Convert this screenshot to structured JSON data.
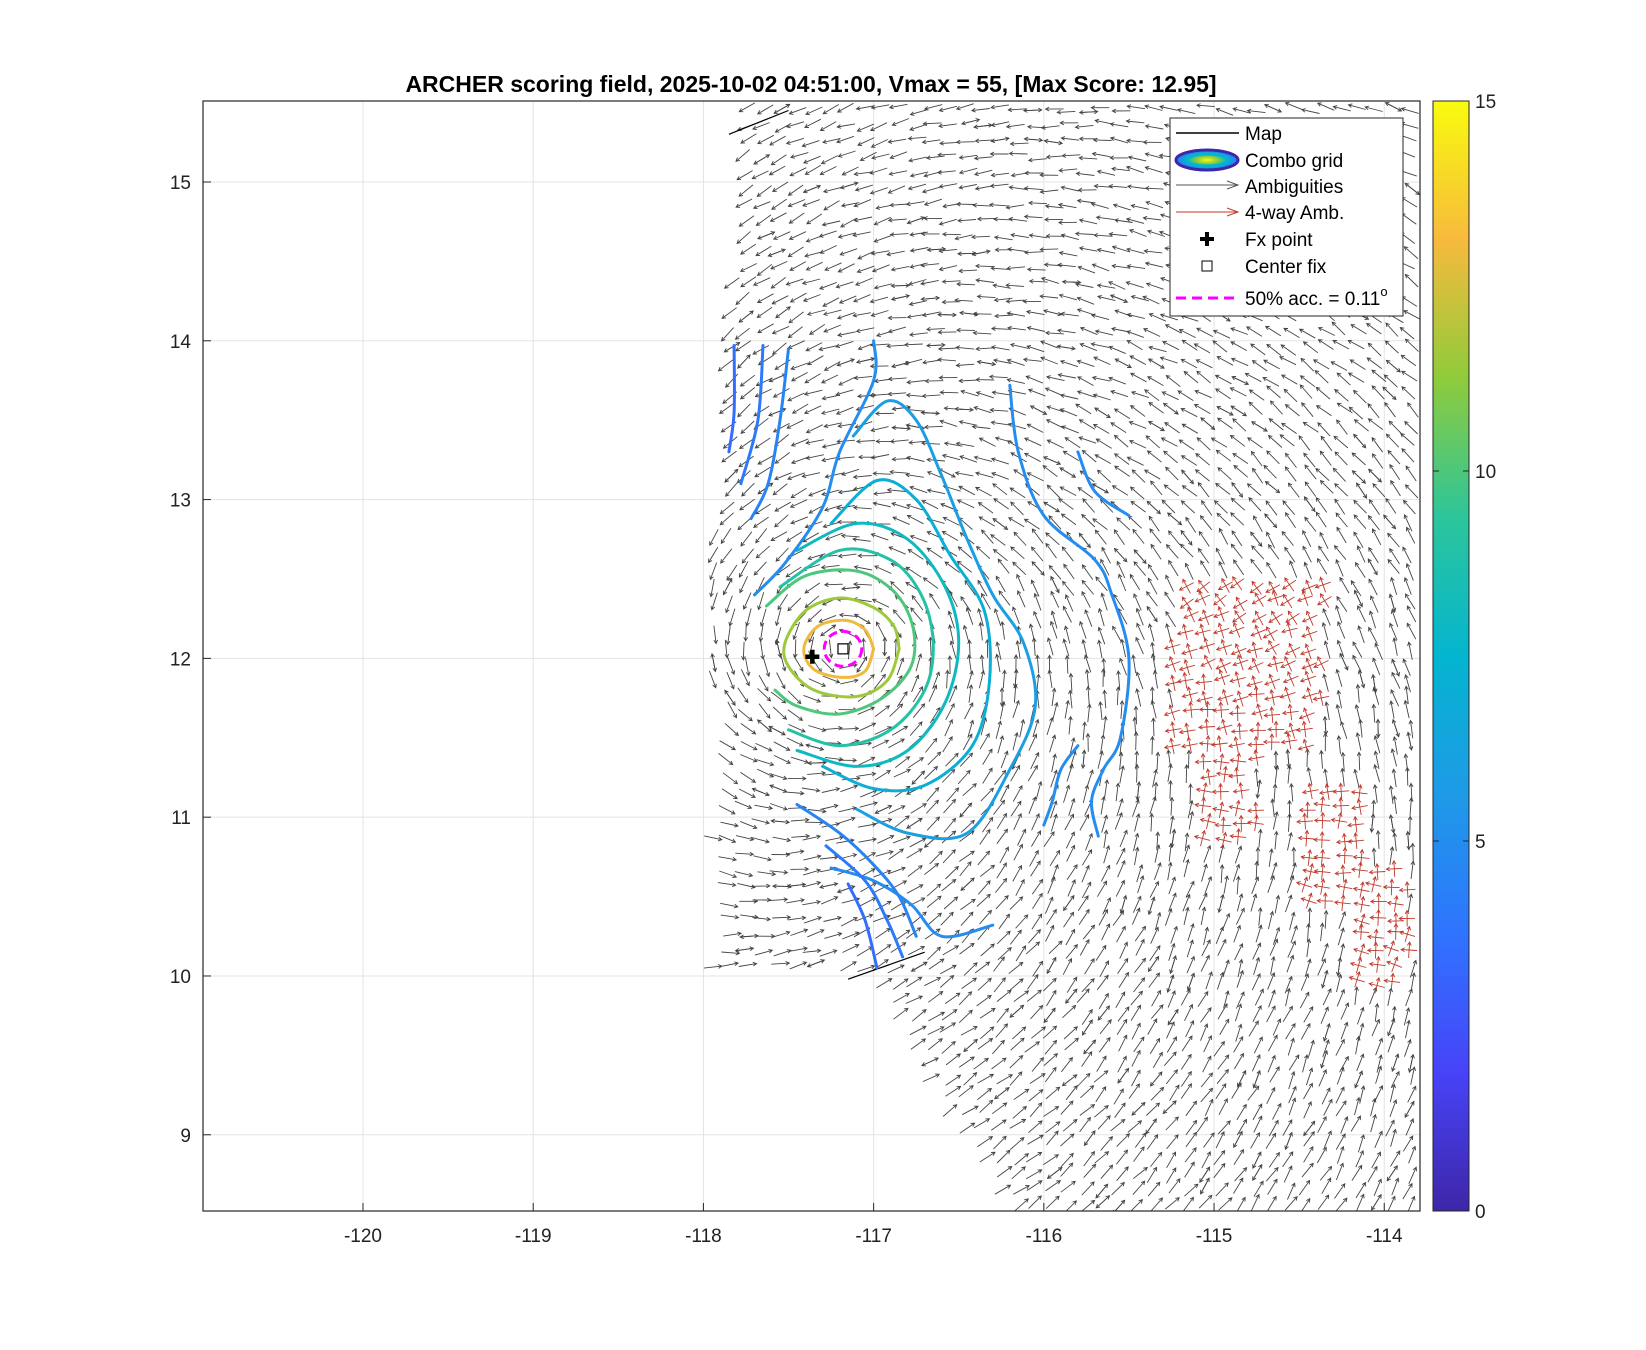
{
  "chart_data": {
    "type": "contour",
    "title": "ARCHER scoring field, 2025-10-02 04:51:00, Vmax = 55, [Max Score: 12.95]",
    "xlabel": "",
    "ylabel": "",
    "xlim": [
      -120.94,
      -113.79
    ],
    "ylim": [
      8.52,
      15.51
    ],
    "xticks": [
      "-120",
      "-119",
      "-118",
      "-117",
      "-116",
      "-115",
      "-114"
    ],
    "yticks": [
      "9",
      "10",
      "11",
      "12",
      "13",
      "14",
      "15"
    ],
    "grid": true,
    "legend_position": "top-right",
    "legend": [
      {
        "label": "Map",
        "kind": "line"
      },
      {
        "label": "Combo grid",
        "kind": "contour"
      },
      {
        "label": "Ambiguities",
        "kind": "arrow"
      },
      {
        "label": "4-way Amb.",
        "kind": "red-arrow"
      },
      {
        "label": "Fx point",
        "kind": "plus"
      },
      {
        "label": "Center fix",
        "kind": "square"
      },
      {
        "label": "50% acc. = 0.11",
        "superscript": "o",
        "kind": "dashed"
      }
    ],
    "colorbar": {
      "min": 0,
      "max": 15,
      "ticks": [
        "0",
        "5",
        "10",
        "15"
      ],
      "colormap": "parula"
    },
    "fx_point": {
      "lon": -117.36,
      "lat": 12.01
    },
    "center_fix": {
      "lon": -117.18,
      "lat": 12.06
    },
    "accuracy_circle": {
      "lon": -117.18,
      "lat": 12.06,
      "radius_deg": 0.11
    },
    "contours": [
      {
        "level": 13,
        "points": [
          [
            -117.0,
            12.06
          ],
          [
            -117.05,
            11.92
          ],
          [
            -117.18,
            11.88
          ],
          [
            -117.35,
            11.93
          ],
          [
            -117.41,
            12.06
          ],
          [
            -117.33,
            12.2
          ],
          [
            -117.17,
            12.24
          ],
          [
            -117.05,
            12.18
          ],
          [
            -117.0,
            12.06
          ]
        ]
      },
      {
        "level": 11.5,
        "points": [
          [
            -116.85,
            12.06
          ],
          [
            -116.92,
            11.86
          ],
          [
            -117.1,
            11.76
          ],
          [
            -117.35,
            11.8
          ],
          [
            -117.5,
            11.95
          ],
          [
            -117.52,
            12.1
          ],
          [
            -117.4,
            12.3
          ],
          [
            -117.2,
            12.38
          ],
          [
            -117.0,
            12.32
          ],
          [
            -116.88,
            12.2
          ],
          [
            -116.85,
            12.06
          ]
        ]
      },
      {
        "level": 10,
        "points": [
          [
            -117.63,
            12.33
          ],
          [
            -117.4,
            12.52
          ],
          [
            -117.1,
            12.55
          ],
          [
            -116.88,
            12.42
          ],
          [
            -116.77,
            12.2
          ],
          [
            -116.78,
            11.95
          ],
          [
            -116.95,
            11.75
          ],
          [
            -117.2,
            11.65
          ],
          [
            -117.45,
            11.7
          ],
          [
            -117.58,
            11.8
          ]
        ]
      },
      {
        "level": 9,
        "points": [
          [
            -117.55,
            12.45
          ],
          [
            -117.2,
            12.68
          ],
          [
            -116.9,
            12.62
          ],
          [
            -116.72,
            12.4
          ],
          [
            -116.65,
            12.1
          ],
          [
            -116.7,
            11.8
          ],
          [
            -116.9,
            11.55
          ],
          [
            -117.2,
            11.45
          ],
          [
            -117.5,
            11.55
          ]
        ]
      },
      {
        "level": 8,
        "points": [
          [
            -117.45,
            12.68
          ],
          [
            -117.1,
            12.85
          ],
          [
            -116.8,
            12.75
          ],
          [
            -116.58,
            12.45
          ],
          [
            -116.5,
            12.1
          ],
          [
            -116.58,
            11.72
          ],
          [
            -116.8,
            11.42
          ],
          [
            -117.1,
            11.32
          ],
          [
            -117.45,
            11.42
          ]
        ]
      },
      {
        "level": 7,
        "points": [
          [
            -117.25,
            12.85
          ],
          [
            -116.98,
            13.12
          ],
          [
            -116.75,
            13.0
          ],
          [
            -116.55,
            12.65
          ],
          [
            -116.35,
            12.3
          ],
          [
            -116.32,
            11.85
          ],
          [
            -116.42,
            11.45
          ],
          [
            -116.7,
            11.2
          ],
          [
            -117.0,
            11.18
          ],
          [
            -117.3,
            11.32
          ]
        ]
      },
      {
        "level": 6,
        "points": [
          [
            -117.12,
            13.4
          ],
          [
            -116.92,
            13.62
          ],
          [
            -116.75,
            13.5
          ],
          [
            -116.6,
            13.15
          ],
          [
            -116.45,
            12.75
          ],
          [
            -116.3,
            12.4
          ],
          [
            -116.12,
            12.1
          ],
          [
            -116.05,
            11.7
          ],
          [
            -116.2,
            11.3
          ],
          [
            -116.45,
            10.9
          ],
          [
            -116.8,
            10.9
          ],
          [
            -117.1,
            11.05
          ]
        ]
      },
      {
        "level": 5,
        "points": [
          [
            -117.0,
            14.0
          ],
          [
            -117.0,
            13.75
          ],
          [
            -117.2,
            13.3
          ],
          [
            -117.3,
            12.95
          ],
          [
            -117.52,
            12.6
          ],
          [
            -117.7,
            12.4
          ]
        ]
      },
      {
        "level": 5,
        "points": [
          [
            -116.2,
            13.72
          ],
          [
            -116.15,
            13.3
          ],
          [
            -116.0,
            12.9
          ],
          [
            -115.7,
            12.62
          ],
          [
            -115.6,
            12.4
          ],
          [
            -115.5,
            12.0
          ],
          [
            -115.55,
            11.5
          ],
          [
            -115.65,
            11.3
          ],
          [
            -115.72,
            11.1
          ],
          [
            -115.68,
            10.88
          ]
        ]
      },
      {
        "level": 5,
        "points": [
          [
            -115.8,
            11.45
          ],
          [
            -115.9,
            11.3
          ],
          [
            -115.95,
            11.1
          ],
          [
            -116.0,
            10.95
          ]
        ]
      },
      {
        "level": 5,
        "points": [
          [
            -115.8,
            13.3
          ],
          [
            -115.7,
            13.05
          ],
          [
            -115.5,
            12.9
          ]
        ]
      },
      {
        "level": 5,
        "points": [
          [
            -117.25,
            10.68
          ],
          [
            -117.0,
            10.6
          ],
          [
            -116.78,
            10.45
          ],
          [
            -116.6,
            10.25
          ],
          [
            -116.3,
            10.32
          ]
        ]
      },
      {
        "level": 4.5,
        "points": [
          [
            -117.5,
            13.95
          ],
          [
            -117.55,
            13.5
          ],
          [
            -117.62,
            13.1
          ],
          [
            -117.72,
            12.88
          ]
        ]
      },
      {
        "level": 4.5,
        "points": [
          [
            -117.45,
            11.08
          ],
          [
            -117.2,
            10.9
          ],
          [
            -117.0,
            10.7
          ],
          [
            -116.85,
            10.5
          ],
          [
            -116.75,
            10.25
          ]
        ]
      },
      {
        "level": 4,
        "points": [
          [
            -117.65,
            13.97
          ],
          [
            -117.68,
            13.5
          ],
          [
            -117.78,
            13.1
          ]
        ]
      },
      {
        "level": 4,
        "points": [
          [
            -117.28,
            10.82
          ],
          [
            -117.05,
            10.6
          ],
          [
            -116.92,
            10.35
          ],
          [
            -116.83,
            10.12
          ]
        ]
      },
      {
        "level": 3.5,
        "points": [
          [
            -117.82,
            13.97
          ],
          [
            -117.82,
            13.55
          ],
          [
            -117.85,
            13.3
          ]
        ]
      },
      {
        "level": 3.5,
        "points": [
          [
            -117.15,
            10.58
          ],
          [
            -117.05,
            10.35
          ],
          [
            -116.98,
            10.05
          ]
        ]
      }
    ],
    "map_lines": [
      [
        [
          -117.85,
          15.3
        ],
        [
          -117.5,
          15.45
        ]
      ],
      [
        [
          -117.15,
          9.98
        ],
        [
          -116.7,
          10.15
        ]
      ]
    ],
    "wind_field": {
      "vortex_center": {
        "lon": -117.18,
        "lat": 12.06
      },
      "lon_range": [
        -117.95,
        -113.79
      ],
      "lat_range": [
        8.52,
        15.51
      ],
      "spacing_deg": 0.1
    },
    "four_way_ambiguity_regions": [
      {
        "lon": [
          -115.25,
          -114.35
        ],
        "lat": [
          11.4,
          12.5
        ]
      },
      {
        "lon": [
          -115.1,
          -114.75
        ],
        "lat": [
          10.8,
          11.5
        ]
      },
      {
        "lon": [
          -114.5,
          -114.1
        ],
        "lat": [
          10.4,
          11.2
        ]
      },
      {
        "lon": [
          -114.2,
          -113.85
        ],
        "lat": [
          9.9,
          10.7
        ]
      }
    ]
  }
}
